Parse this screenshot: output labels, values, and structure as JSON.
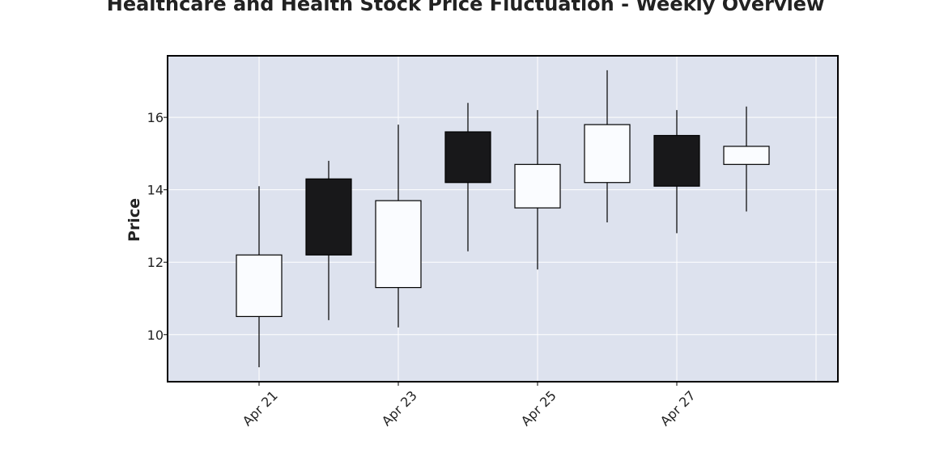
{
  "chart_data": {
    "type": "candlestick",
    "title": "Healthcare and Health Stock Price Fluctuation - Weekly Overview",
    "xlabel": "",
    "ylabel": "Price",
    "x_ticks": [
      "Apr 21",
      "Apr 23",
      "Apr 25",
      "Apr 27"
    ],
    "y_ticks": [
      10,
      12,
      14,
      16
    ],
    "ylim": [
      8.7,
      17.7
    ],
    "grid": true,
    "colors": {
      "plot_bg": "#dde2ee",
      "grid": "#ffffff",
      "up": "#fafcff",
      "down": "#18181a",
      "edge": "#000000"
    },
    "candles": [
      {
        "date": "Apr 21",
        "open": 10.5,
        "high": 14.1,
        "low": 9.1,
        "close": 12.2
      },
      {
        "date": "Apr 22",
        "open": 14.3,
        "high": 14.8,
        "low": 10.4,
        "close": 12.2
      },
      {
        "date": "Apr 23",
        "open": 11.3,
        "high": 15.8,
        "low": 10.2,
        "close": 13.7
      },
      {
        "date": "Apr 24",
        "open": 15.6,
        "high": 16.4,
        "low": 12.3,
        "close": 14.2
      },
      {
        "date": "Apr 25",
        "open": 13.5,
        "high": 16.2,
        "low": 11.8,
        "close": 14.7
      },
      {
        "date": "Apr 26",
        "open": 14.2,
        "high": 17.3,
        "low": 13.1,
        "close": 15.8
      },
      {
        "date": "Apr 27",
        "open": 15.5,
        "high": 16.2,
        "low": 12.8,
        "close": 14.1
      },
      {
        "date": "Apr 28",
        "open": 14.7,
        "high": 16.3,
        "low": 13.4,
        "close": 15.2
      }
    ]
  }
}
